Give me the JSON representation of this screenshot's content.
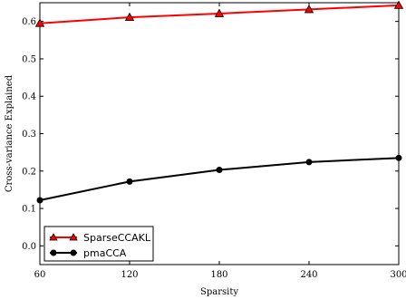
{
  "chart_data": {
    "type": "line",
    "title": "",
    "xlabel": "Sparsity",
    "ylabel": "Cross-variance Explained",
    "xlim": [
      60,
      300
    ],
    "ylim": [
      -0.05,
      0.65
    ],
    "xticks": [
      60,
      120,
      180,
      240,
      300
    ],
    "xtick_labels": [
      "60",
      "120",
      "180",
      "240",
      "300"
    ],
    "yticks": [
      0.0,
      0.1,
      0.2,
      0.3,
      0.4,
      0.5,
      0.6
    ],
    "ytick_labels": [
      "0.0",
      "0.1",
      "0.2",
      "0.3",
      "0.4",
      "0.5",
      "0.6"
    ],
    "x": [
      60,
      120,
      180,
      240,
      300
    ],
    "series": [
      {
        "name": "SparseCCAKL",
        "values": [
          0.595,
          0.611,
          0.621,
          0.632,
          0.643
        ],
        "color": "#ff0000",
        "marker": "triangle"
      },
      {
        "name": "pmaCCA",
        "values": [
          0.122,
          0.172,
          0.203,
          0.224,
          0.235
        ],
        "color": "#000000",
        "marker": "circle"
      }
    ],
    "grid": false,
    "legend": "bottom-left"
  }
}
